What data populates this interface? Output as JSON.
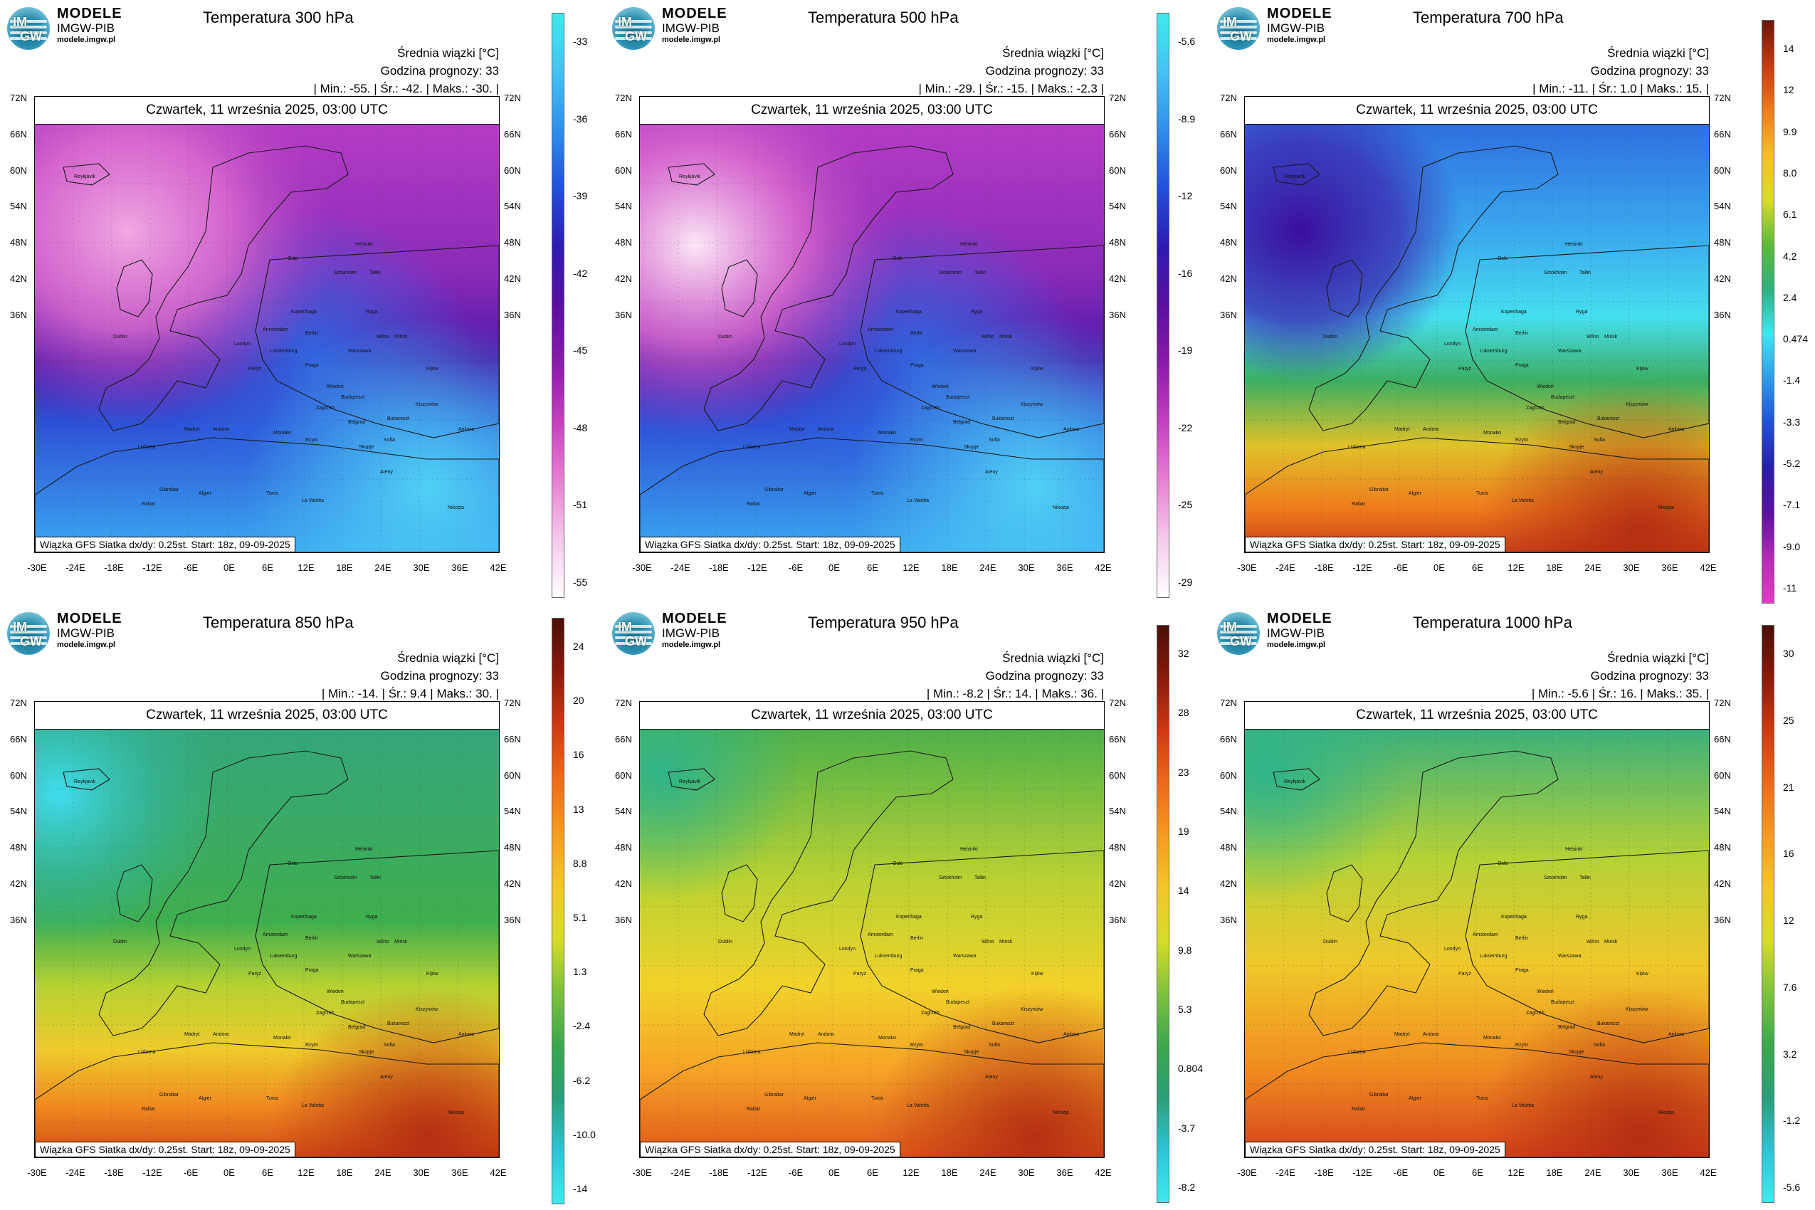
{
  "colors": {
    "cold_scale": [
      "#ffffff",
      "#f5c9ea",
      "#e880d4",
      "#c540c0",
      "#8b1aaa",
      "#5a0fa0",
      "#2f1bb0",
      "#2250d8",
      "#2f8fea",
      "#45c2f2",
      "#3fe9ee"
    ],
    "warm_scale": [
      "#3fe9ee",
      "#2fc3d8",
      "#2a9e78",
      "#3ca84c",
      "#7fc23c",
      "#d8dc2a",
      "#f3c52a",
      "#f59a22",
      "#ec6a1a",
      "#cc3a12",
      "#8a1a0a",
      "#4a0e08"
    ],
    "deep_scale": [
      "#e23cc0",
      "#b52cb8",
      "#5a10a0",
      "#2a1ea8",
      "#1f50d8",
      "#2f9ae8",
      "#3fe6f0",
      "#2fb07e",
      "#5dba3a",
      "#d9dc2a",
      "#f6be28",
      "#ef7a1c",
      "#c63a12",
      "#6a150a"
    ]
  },
  "panels": [
    {
      "logo": {
        "brand": "MODELE",
        "org": "IMGW-PIB",
        "url": "modele.imgw.pl",
        "badge_top": "IM",
        "badge_bottom": "GW"
      },
      "title": "Temperatura 300 hPa",
      "info_line1": "Średnia wiązki [°C]",
      "info_line2": "Godzina prognozy: 33",
      "info_line3": "| Min.: -55. | Śr.: -42. | Maks.: -30. |",
      "date_header": "Czwartek, 11 września 2025, 03:00 UTC",
      "footnote": "Wiązka GFS Siatka dx/dy: 0.25st. Start: 18z, 09-09-2025",
      "colorbar_ticks": [
        "-33",
        "-36",
        "-39",
        "-42",
        "-45",
        "-48",
        "-51",
        "-55"
      ],
      "palette": "cold"
    },
    {
      "logo": {
        "brand": "MODELE",
        "org": "IMGW-PIB",
        "url": "modele.imgw.pl",
        "badge_top": "IM",
        "badge_bottom": "GW"
      },
      "title": "Temperatura 500 hPa",
      "info_line1": "Średnia wiązki [°C]",
      "info_line2": "Godzina prognozy: 33",
      "info_line3": "| Min.: -29. | Śr.: -15. | Maks.: -2.3 |",
      "date_header": "Czwartek, 11 września 2025, 03:00 UTC",
      "footnote": "Wiązka GFS Siatka dx/dy: 0.25st. Start: 18z, 09-09-2025",
      "colorbar_ticks": [
        "-5.6",
        "-8.9",
        "-12",
        "-16",
        "-19",
        "-22",
        "-25",
        "-29"
      ],
      "palette": "cold"
    },
    {
      "logo": {
        "brand": "MODELE",
        "org": "IMGW-PIB",
        "url": "modele.imgw.pl",
        "badge_top": "IM",
        "badge_bottom": "GW"
      },
      "title": "Temperatura 700 hPa",
      "info_line1": "Średnia wiązki [°C]",
      "info_line2": "Godzina prognozy: 33",
      "info_line3": "| Min.: -11. | Śr.: 1.0 | Maks.: 15. |",
      "date_header": "Czwartek, 11 września 2025, 03:00 UTC",
      "footnote": "Wiązka GFS Siatka dx/dy: 0.25st. Start: 18z, 09-09-2025",
      "colorbar_ticks": [
        "14",
        "12",
        "9.9",
        "8.0",
        "6.1",
        "4.2",
        "2.4",
        "0.474",
        "-1.4",
        "-3.3",
        "-5.2",
        "-7.1",
        "-9.0",
        "-11"
      ],
      "palette": "deep"
    },
    {
      "logo": {
        "brand": "MODELE",
        "org": "IMGW-PIB",
        "url": "modele.imgw.pl",
        "badge_top": "IM",
        "badge_bottom": "GW"
      },
      "title": "Temperatura 850 hPa",
      "info_line1": "Średnia wiązki [°C]",
      "info_line2": "Godzina prognozy: 33",
      "info_line3": "| Min.: -14. | Śr.: 9.4 | Maks.: 30. |",
      "date_header": "Czwartek, 11 września 2025, 03:00 UTC",
      "footnote": "Wiązka GFS Siatka dx/dy: 0.25st. Start: 18z, 09-09-2025",
      "colorbar_ticks": [
        "24",
        "20",
        "16",
        "13",
        "8.8",
        "5.1",
        "1.3",
        "-2.4",
        "-6.2",
        "-10.0",
        "-14"
      ],
      "palette": "warm"
    },
    {
      "logo": {
        "brand": "MODELE",
        "org": "IMGW-PIB",
        "url": "modele.imgw.pl",
        "badge_top": "IM",
        "badge_bottom": "GW"
      },
      "title": "Temperatura 950 hPa",
      "info_line1": "Średnia wiązki [°C]",
      "info_line2": "Godzina prognozy: 33",
      "info_line3": "| Min.: -8.2 | Śr.: 14. | Maks.: 36. |",
      "date_header": "Czwartek, 11 września 2025, 03:00 UTC",
      "footnote": "Wiązka GFS Siatka dx/dy: 0.25st. Start: 18z, 09-09-2025",
      "colorbar_ticks": [
        "32",
        "28",
        "23",
        "19",
        "14",
        "9.8",
        "5.3",
        "0.804",
        "-3.7",
        "-8.2"
      ],
      "palette": "warm"
    },
    {
      "logo": {
        "brand": "MODELE",
        "org": "IMGW-PIB",
        "url": "modele.imgw.pl",
        "badge_top": "IM",
        "badge_bottom": "GW"
      },
      "title": "Temperatura 1000 hPa",
      "info_line1": "Średnia wiązki [°C]",
      "info_line2": "Godzina prognozy: 33",
      "info_line3": "| Min.: -5.6 | Śr.: 16. | Maks.: 35. |",
      "date_header": "Czwartek, 11 września 2025, 03:00 UTC",
      "footnote": "Wiązka GFS Siatka dx/dy: 0.25st. Start: 18z, 09-09-2025",
      "colorbar_ticks": [
        "30",
        "25",
        "21",
        "16",
        "12",
        "7.6",
        "3.2",
        "-1.2",
        "-5.6"
      ],
      "palette": "warm"
    }
  ],
  "lat_labels_left": [
    "72N",
    "66N",
    "60N",
    "54N",
    "48N",
    "42N",
    "36N"
  ],
  "lat_labels_right": [
    "72N",
    "66N",
    "60N",
    "54N",
    "48N",
    "42N",
    "36N"
  ],
  "lon_labels": [
    "-30E",
    "-24E",
    "-18E",
    "-12E",
    "-6E",
    "0E",
    "6E",
    "12E",
    "18E",
    "24E",
    "30E",
    "36E",
    "42E"
  ],
  "cities": [
    "Oslo",
    "Sztokholm",
    "Helsinki",
    "Tallin",
    "Ryga",
    "Wilno",
    "Kopenhaga",
    "Londyn",
    "Amsterdam",
    "Berlin",
    "Warszawa",
    "Mińsk",
    "Kijów",
    "Paryż",
    "Praga",
    "Wiedeń",
    "Budapeszt",
    "Kiszyniów",
    "Bukareszt",
    "Sofia",
    "Belgrad",
    "Zagrzeb",
    "Rzym",
    "Madryt",
    "Lizbona",
    "Andora",
    "Algier",
    "Tunis",
    "Ateny",
    "Ankara",
    "Rabat",
    "Gibraltar",
    "La Valetta",
    "Skopje",
    "Luksemburg",
    "Monako",
    "Nikozja",
    "Dublin",
    "Reykjavik"
  ]
}
